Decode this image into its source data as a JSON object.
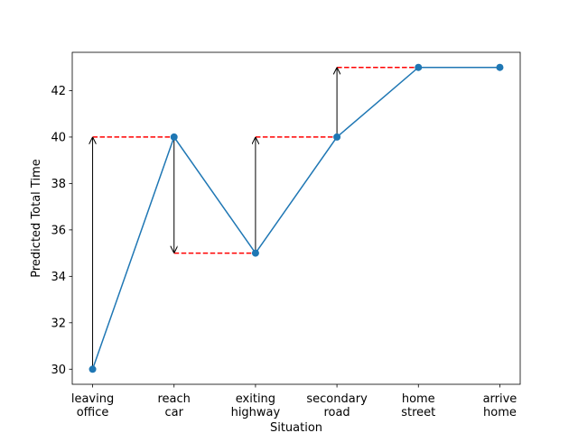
{
  "chart_data": {
    "type": "line",
    "x_label": "Situation",
    "y_label": "Predicted Total Time",
    "categories": [
      "leaving\noffice",
      "reach\ncar",
      "exiting\nhighway",
      "secondary\nroad",
      "home\nstreet",
      "arrive\nhome"
    ],
    "series": [
      {
        "name": "Predicted Total Time",
        "color": "#1f77b4",
        "values": [
          30,
          40,
          35,
          40,
          43,
          43
        ]
      }
    ],
    "target_color": "#ff0000",
    "arrow_color": "#000000",
    "ylim": [
      29.35,
      43.65
    ],
    "yticks": [
      30,
      32,
      34,
      36,
      38,
      40,
      42
    ]
  }
}
